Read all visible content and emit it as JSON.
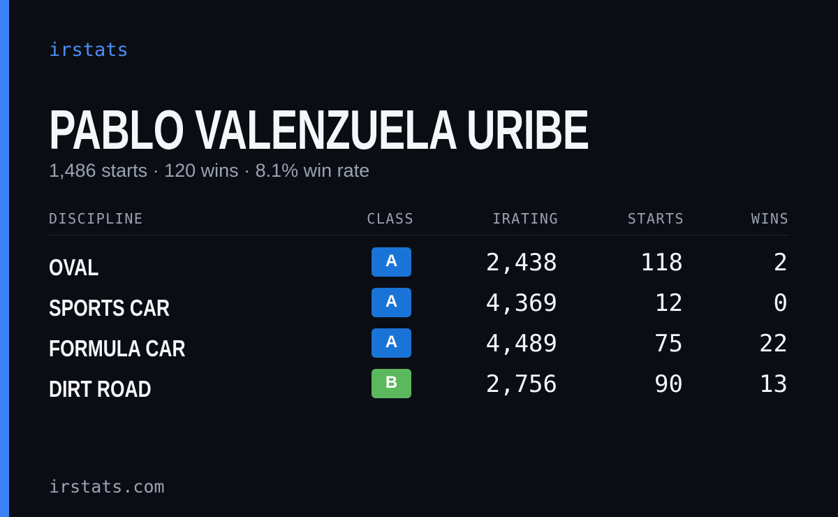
{
  "brand": "irstats",
  "name": "PABLO VALENZUELA URIBE",
  "summary": "1,486 starts · 120 wins · 8.1% win rate",
  "table": {
    "headers": [
      "DISCIPLINE",
      "CLASS",
      "IRATING",
      "STARTS",
      "WINS"
    ],
    "rows": [
      {
        "discipline": "OVAL",
        "class": "A",
        "class_color": "#1a74d8",
        "irating": "2,438",
        "starts": "118",
        "wins": "2"
      },
      {
        "discipline": "SPORTS CAR",
        "class": "A",
        "class_color": "#1a74d8",
        "irating": "4,369",
        "starts": "12",
        "wins": "0"
      },
      {
        "discipline": "FORMULA CAR",
        "class": "A",
        "class_color": "#1a74d8",
        "irating": "4,489",
        "starts": "75",
        "wins": "22"
      },
      {
        "discipline": "DIRT ROAD",
        "class": "B",
        "class_color": "#5cb85c",
        "irating": "2,756",
        "starts": "90",
        "wins": "13"
      }
    ]
  },
  "footer": "irstats.com"
}
